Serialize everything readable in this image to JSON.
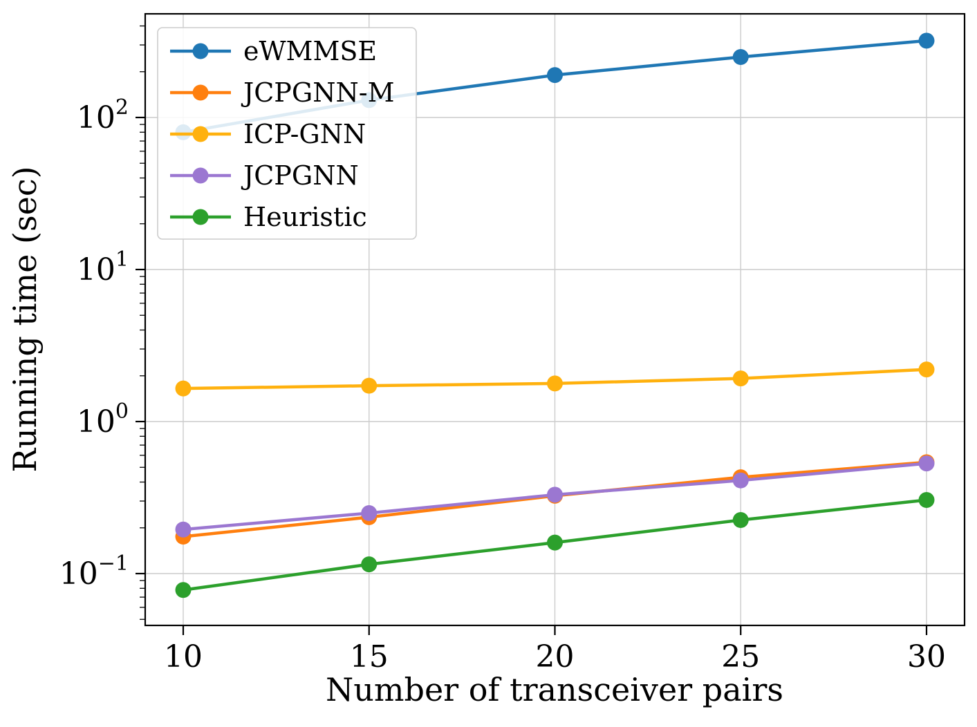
{
  "chart_data": {
    "type": "line",
    "title": "",
    "xlabel": "Number of transceiver pairs",
    "ylabel": "Running time (sec)",
    "x": [
      10,
      15,
      20,
      25,
      30
    ],
    "series": [
      {
        "name": "eWMMSE",
        "color": "#1f77b4",
        "values": [
          80,
          130,
          190,
          250,
          320
        ]
      },
      {
        "name": "JCPGNN-M",
        "color": "#ff7f0e",
        "values": [
          0.175,
          0.235,
          0.325,
          0.43,
          0.54
        ]
      },
      {
        "name": "ICP-GNN",
        "color": "#ffb10e",
        "values": [
          1.65,
          1.72,
          1.78,
          1.92,
          2.2
        ]
      },
      {
        "name": "JCPGNN",
        "color": "#9b77d1",
        "values": [
          0.195,
          0.25,
          0.33,
          0.41,
          0.53
        ]
      },
      {
        "name": "Heuristic",
        "color": "#2ca02c",
        "values": [
          0.078,
          0.115,
          0.16,
          0.225,
          0.305
        ]
      }
    ],
    "yscale": "log",
    "ylim": [
      0.0456,
      481
    ],
    "xticks": [
      "10",
      "15",
      "20",
      "25",
      "30"
    ],
    "ytick_exponents": [
      -1,
      0,
      1,
      2
    ],
    "grid": true,
    "legend_position": "upper left",
    "grid_color": "#cccccc",
    "spine_color": "#000000",
    "legend_border_color": "#cccccc",
    "legend_background": "#ffffff"
  }
}
